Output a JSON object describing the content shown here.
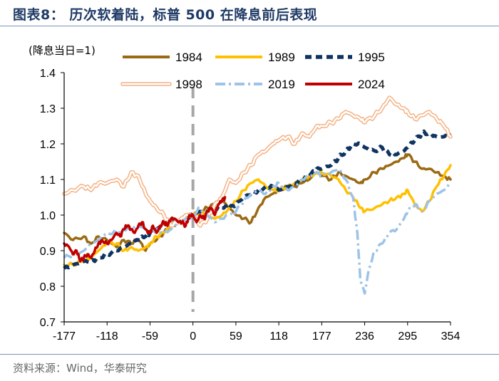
{
  "header": {
    "title": "图表8：  历次软着陆，标普 500 在降息前后表现"
  },
  "footer": {
    "source": "资料来源：Wind，华泰研究"
  },
  "chart_data": {
    "type": "line",
    "title": "图表8：  历次软着陆，标普 500 在降息前后表现",
    "ylabel": "(降息当日=1)",
    "xlabel": "",
    "ylim": [
      0.7,
      1.4
    ],
    "xlim": [
      -177,
      354
    ],
    "yticks": [
      0.7,
      0.8,
      0.9,
      1.0,
      1.1,
      1.2,
      1.3,
      1.4
    ],
    "ytick_labels": [
      "0.7",
      "0.8",
      "0.9",
      "1.0",
      "1.1",
      "1.2",
      "1.3",
      "1.4"
    ],
    "xticks": [
      -177,
      -118,
      -59,
      0,
      59,
      118,
      177,
      236,
      295,
      354
    ],
    "xtick_labels": [
      "-177",
      "-118",
      "-59",
      "0",
      "59",
      "118",
      "177",
      "236",
      "295",
      "354"
    ],
    "reference_line": {
      "x": 0,
      "style": "dashed",
      "color": "#a6a6a6"
    },
    "legend_placement": "top",
    "series": [
      {
        "name": "1984",
        "color": "#9b6a14",
        "style": "solid",
        "x": [
          -177,
          -165,
          -150,
          -140,
          -130,
          -118,
          -105,
          -95,
          -85,
          -75,
          -65,
          -59,
          -50,
          -40,
          -30,
          -20,
          -10,
          0,
          10,
          20,
          30,
          40,
          50,
          59,
          70,
          80,
          90,
          100,
          110,
          118,
          130,
          140,
          150,
          160,
          170,
          177,
          190,
          200,
          210,
          220,
          230,
          236,
          250,
          260,
          270,
          280,
          290,
          295,
          305,
          315,
          325,
          335,
          345,
          354
        ],
        "y": [
          0.95,
          0.93,
          0.94,
          0.92,
          0.94,
          0.93,
          0.91,
          0.93,
          0.92,
          0.93,
          0.9,
          0.92,
          0.93,
          0.95,
          0.97,
          0.98,
          1.0,
          1.0,
          1.01,
          1.02,
          1.03,
          1.04,
          1.02,
          1.0,
          0.99,
          0.98,
          1.02,
          1.05,
          1.06,
          1.07,
          1.08,
          1.08,
          1.09,
          1.1,
          1.12,
          1.11,
          1.1,
          1.12,
          1.11,
          1.1,
          1.09,
          1.1,
          1.12,
          1.13,
          1.14,
          1.15,
          1.16,
          1.17,
          1.15,
          1.13,
          1.13,
          1.12,
          1.11,
          1.1
        ]
      },
      {
        "name": "1989",
        "color": "#ffc000",
        "style": "solid",
        "x": [
          -177,
          -165,
          -150,
          -140,
          -130,
          -118,
          -105,
          -95,
          -85,
          -75,
          -65,
          -59,
          -50,
          -40,
          -30,
          -20,
          -10,
          0,
          10,
          20,
          30,
          40,
          50,
          59,
          70,
          80,
          90,
          100,
          110,
          118,
          130,
          140,
          150,
          160,
          170,
          177,
          190,
          200,
          210,
          220,
          230,
          236,
          250,
          260,
          270,
          280,
          290,
          295,
          305,
          315,
          325,
          335,
          345,
          354
        ],
        "y": [
          0.86,
          0.86,
          0.87,
          0.88,
          0.9,
          0.92,
          0.92,
          0.9,
          0.91,
          0.9,
          0.91,
          0.92,
          0.94,
          0.95,
          0.97,
          0.98,
          0.99,
          1.0,
          1.01,
          1.0,
          0.99,
          1.0,
          1.02,
          1.04,
          1.07,
          1.09,
          1.1,
          1.08,
          1.07,
          1.07,
          1.08,
          1.09,
          1.1,
          1.11,
          1.12,
          1.12,
          1.11,
          1.1,
          1.07,
          1.05,
          1.02,
          1.01,
          1.02,
          1.03,
          1.04,
          1.05,
          1.06,
          1.07,
          1.03,
          1.01,
          1.04,
          1.08,
          1.11,
          1.14
        ]
      },
      {
        "name": "1995",
        "color": "#0f3461",
        "style": "dashed",
        "x": [
          -177,
          -165,
          -150,
          -140,
          -130,
          -118,
          -105,
          -95,
          -85,
          -75,
          -65,
          -59,
          -50,
          -40,
          -30,
          -20,
          -10,
          0,
          10,
          20,
          30,
          40,
          50,
          59,
          70,
          80,
          90,
          100,
          110,
          118,
          130,
          140,
          150,
          160,
          170,
          177,
          190,
          200,
          210,
          220,
          230,
          236,
          250,
          260,
          270,
          280,
          290,
          295,
          305,
          315,
          325,
          335,
          345,
          354
        ],
        "y": [
          0.85,
          0.86,
          0.87,
          0.87,
          0.88,
          0.89,
          0.9,
          0.91,
          0.92,
          0.93,
          0.94,
          0.95,
          0.96,
          0.97,
          0.98,
          0.99,
          0.99,
          1.0,
          1.01,
          1.01,
          1.02,
          1.02,
          1.02,
          1.03,
          1.05,
          1.06,
          1.07,
          1.08,
          1.08,
          1.07,
          1.08,
          1.09,
          1.1,
          1.11,
          1.13,
          1.13,
          1.14,
          1.16,
          1.18,
          1.2,
          1.2,
          1.19,
          1.18,
          1.19,
          1.17,
          1.17,
          1.18,
          1.19,
          1.21,
          1.23,
          1.23,
          1.22,
          1.22,
          1.23
        ]
      },
      {
        "name": "1998",
        "color": "#f4b183",
        "style": "hollow",
        "x": [
          -177,
          -165,
          -150,
          -140,
          -130,
          -118,
          -105,
          -95,
          -85,
          -75,
          -65,
          -59,
          -50,
          -40,
          -30,
          -20,
          -10,
          0,
          10,
          20,
          30,
          40,
          50,
          59,
          70,
          80,
          90,
          100,
          110,
          118,
          130,
          140,
          150,
          160,
          170,
          177,
          190,
          200,
          210,
          220,
          230,
          236,
          250,
          260,
          270,
          280,
          290,
          295,
          305,
          315,
          325,
          335,
          345,
          354
        ],
        "y": [
          1.06,
          1.07,
          1.08,
          1.07,
          1.09,
          1.09,
          1.1,
          1.08,
          1.12,
          1.11,
          1.06,
          1.04,
          1.02,
          1.0,
          0.97,
          0.98,
          1.0,
          1.0,
          0.97,
          0.99,
          1.03,
          1.05,
          1.1,
          1.09,
          1.12,
          1.14,
          1.17,
          1.18,
          1.2,
          1.21,
          1.22,
          1.2,
          1.23,
          1.22,
          1.25,
          1.25,
          1.26,
          1.27,
          1.29,
          1.28,
          1.27,
          1.26,
          1.28,
          1.3,
          1.33,
          1.31,
          1.3,
          1.29,
          1.27,
          1.28,
          1.29,
          1.27,
          1.25,
          1.22
        ]
      },
      {
        "name": "2019",
        "color": "#9dc3e6",
        "style": "dashdot",
        "x": [
          -177,
          -165,
          -150,
          -140,
          -130,
          -118,
          -105,
          -95,
          -85,
          -75,
          -65,
          -59,
          -50,
          -40,
          -30,
          -20,
          -10,
          0,
          10,
          20,
          30,
          40,
          50,
          59,
          70,
          80,
          90,
          100,
          110,
          118,
          130,
          140,
          150,
          160,
          170,
          177,
          190,
          200,
          210,
          220,
          226,
          230,
          236,
          242,
          250,
          260,
          270,
          280,
          290,
          295,
          305,
          315,
          325,
          335,
          345,
          354
        ],
        "y": [
          0.88,
          0.89,
          0.9,
          0.92,
          0.93,
          0.95,
          0.95,
          0.96,
          0.96,
          0.97,
          0.96,
          0.95,
          0.96,
          0.95,
          0.96,
          0.98,
          0.99,
          1.0,
          1.02,
          1.0,
          0.98,
          0.99,
          1.0,
          1.01,
          1.04,
          1.06,
          1.07,
          1.06,
          1.08,
          1.09,
          1.07,
          1.08,
          1.1,
          1.11,
          1.12,
          1.11,
          1.12,
          1.13,
          1.1,
          1.05,
          0.95,
          0.82,
          0.78,
          0.85,
          0.9,
          0.92,
          0.95,
          0.96,
          0.99,
          1.01,
          1.03,
          1.01,
          1.04,
          1.06,
          1.07,
          1.09
        ]
      },
      {
        "name": "2024",
        "color": "#c00000",
        "style": "solid",
        "x": [
          -177,
          -170,
          -165,
          -160,
          -155,
          -150,
          -145,
          -140,
          -135,
          -130,
          -125,
          -118,
          -112,
          -105,
          -100,
          -95,
          -90,
          -85,
          -80,
          -75,
          -70,
          -65,
          -59,
          -55,
          -50,
          -45,
          -40,
          -35,
          -30,
          -25,
          -20,
          -15,
          -10,
          -5,
          0,
          5,
          10,
          15,
          20,
          25,
          30,
          35,
          40,
          44
        ],
        "y": [
          0.92,
          0.91,
          0.89,
          0.9,
          0.87,
          0.88,
          0.89,
          0.88,
          0.9,
          0.92,
          0.93,
          0.92,
          0.93,
          0.95,
          0.94,
          0.96,
          0.97,
          0.96,
          0.95,
          0.97,
          0.98,
          0.96,
          0.95,
          0.97,
          0.95,
          0.97,
          0.98,
          0.97,
          0.99,
          0.99,
          0.98,
          0.98,
          0.97,
          1.0,
          1.0,
          0.98,
          1.0,
          0.99,
          1.01,
          1.02,
          1.0,
          1.03,
          1.04,
          1.05
        ]
      }
    ]
  }
}
